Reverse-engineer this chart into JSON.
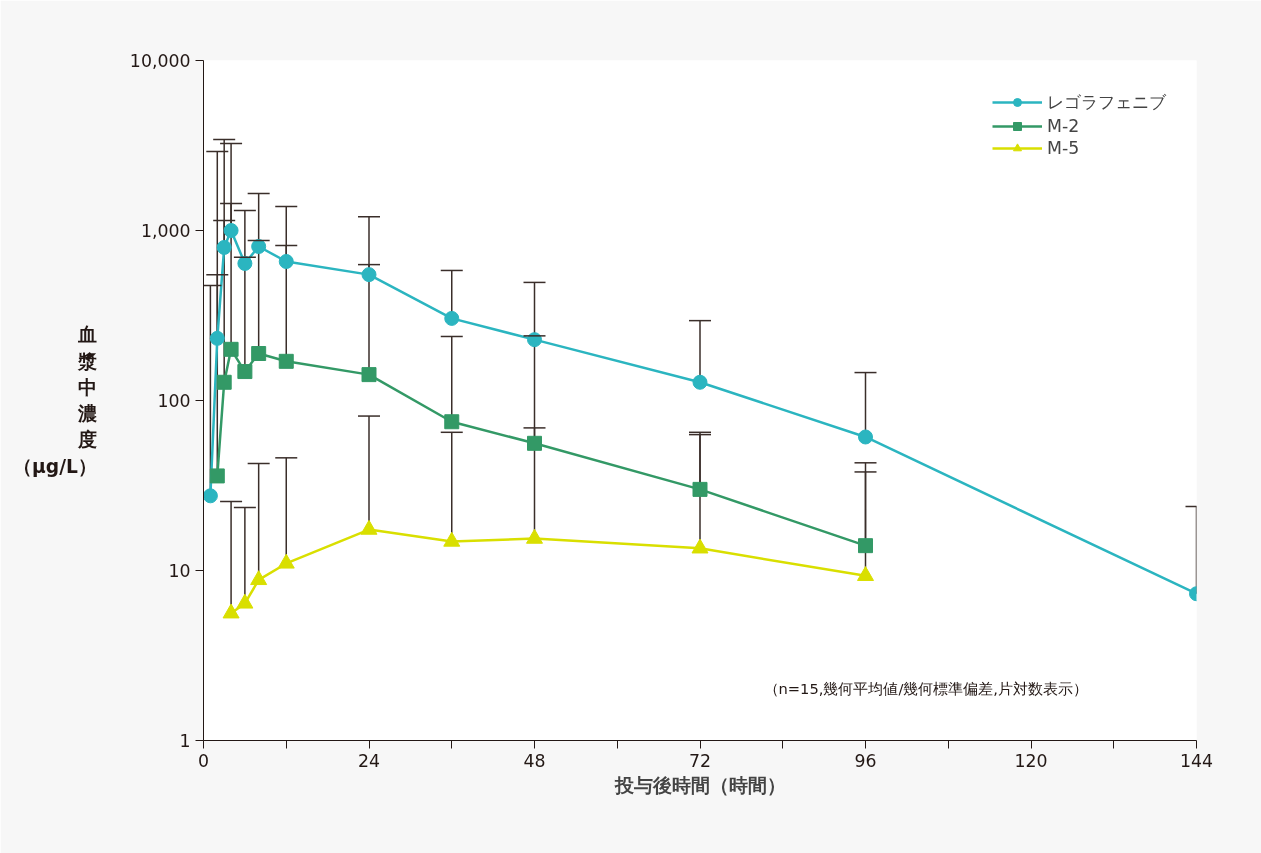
{
  "chart_data": {
    "type": "line",
    "xlabel": "投与後時間（時間）",
    "ylabel": "血漿中濃度（μg/L）",
    "log": "y",
    "xlim": [
      0,
      144
    ],
    "ylim": [
      1,
      10000
    ],
    "xticks": [
      0,
      {
        "value": 12,
        "label": null
      },
      24,
      {
        "value": 36,
        "label": null
      },
      48,
      {
        "value": 60,
        "label": null
      },
      72,
      {
        "value": 84,
        "label": null
      },
      96,
      {
        "value": 108,
        "label": null
      },
      120,
      {
        "value": 132,
        "label": null
      },
      144
    ],
    "yticks": [
      1,
      10,
      100,
      {
        "value": 1000,
        "label": "1,000"
      },
      {
        "value": 10000,
        "label": "10,000"
      }
    ],
    "grid": false,
    "legend": "top right",
    "line_style": "solid",
    "annotations": [
      "（n=15,幾何平均値/幾何標準偏差,片対数表示）"
    ],
    "series": [
      {
        "name": "レゴラフェニブ",
        "color": "#2bb5c0",
        "marker": "circle",
        "x": [
          1,
          2,
          3,
          4,
          6,
          8,
          12,
          24,
          36,
          48,
          72,
          96,
          144
        ],
        "values": [
          27.5,
          232,
          795,
          1000,
          640,
          805,
          657,
          550,
          304,
          228,
          128,
          61,
          7.3
        ],
        "errors": [
          [
            27.5,
            475
          ],
          [
            232,
            2915
          ],
          [
            795,
            3430
          ],
          [
            1000,
            3250
          ],
          [
            640,
            1312
          ],
          [
            805,
            1650
          ],
          [
            657,
            1385
          ],
          [
            550,
            1205
          ],
          [
            304,
            582
          ],
          [
            228,
            495
          ],
          [
            128,
            295
          ],
          [
            61,
            146
          ],
          [
            7.3,
            23.8
          ]
        ]
      },
      {
        "name": "M-2",
        "color": "#339966",
        "marker": "square",
        "x": [
          2,
          3,
          4,
          6,
          8,
          12,
          24,
          36,
          48,
          72,
          96
        ],
        "values": [
          36,
          128,
          200,
          148,
          189,
          170,
          142,
          75,
          56,
          30,
          14
        ],
        "errors": [
          [
            36,
            550
          ],
          [
            128,
            1145
          ],
          [
            200,
            1440
          ],
          [
            148,
            695
          ],
          [
            189,
            873
          ],
          [
            170,
            815
          ],
          [
            142,
            630
          ],
          [
            75,
            238
          ],
          [
            56,
            240
          ],
          [
            30,
            65
          ],
          [
            14,
            43
          ]
        ]
      },
      {
        "name": "M-5",
        "color": "#d9df00",
        "marker": "triangle",
        "x": [
          4,
          6,
          8,
          12,
          24,
          36,
          48,
          72,
          96
        ],
        "values": [
          5.6,
          6.4,
          8.8,
          11,
          17.4,
          14.8,
          15.4,
          13.5,
          9.3
        ],
        "errors": [
          [
            5.6,
            25.5
          ],
          [
            6.4,
            23.5
          ],
          [
            8.8,
            42.6
          ],
          [
            11,
            46
          ],
          [
            17.4,
            81
          ],
          [
            14.8,
            65
          ],
          [
            15.4,
            69
          ],
          [
            13.5,
            63
          ],
          [
            9.3,
            38
          ]
        ]
      }
    ]
  }
}
